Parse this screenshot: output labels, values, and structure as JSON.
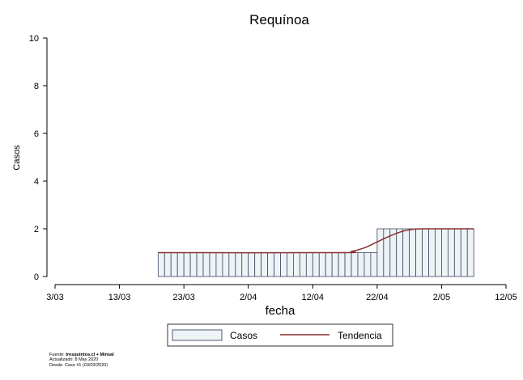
{
  "chart_data": {
    "type": "bar",
    "title": "Requínoa",
    "xlabel": "fecha",
    "ylabel": "Casos",
    "ylim": [
      0,
      10
    ],
    "yticks": [
      0,
      2,
      4,
      6,
      8,
      10
    ],
    "xlim": [
      "2020-03-03",
      "2020-05-12"
    ],
    "xticks": [
      "3/03",
      "13/03",
      "23/03",
      "2/04",
      "12/04",
      "22/04",
      "2/05",
      "12/05"
    ],
    "grid": false,
    "legend_position": "bottom",
    "series": [
      {
        "name": "Casos",
        "style": "bar",
        "color": "#eef3f6",
        "edge_color": "#3d4a62",
        "segments": [
          {
            "from": "2020-03-19",
            "to": "2020-04-22",
            "value": 1
          },
          {
            "from": "2020-04-22",
            "to": "2020-05-07",
            "value": 2
          }
        ]
      },
      {
        "name": "Tendencia",
        "style": "line",
        "color": "#8b2e2e",
        "x": [
          "2020-03-19",
          "2020-04-16",
          "2020-04-18",
          "2020-04-20",
          "2020-04-22",
          "2020-04-24",
          "2020-04-26",
          "2020-04-28",
          "2020-04-30",
          "2020-05-07"
        ],
        "values": [
          1,
          1,
          1.05,
          1.2,
          1.45,
          1.7,
          1.9,
          1.99,
          2,
          2
        ]
      }
    ]
  },
  "legend": {
    "items": [
      {
        "label": "Casos"
      },
      {
        "label": "Tendencia"
      }
    ]
  },
  "footer": {
    "source_prefix": "Fuente: ",
    "source_bold": "tresquintos.cl + Minsal",
    "updated": "Actualizado: 8 May 2020",
    "since": "Desde: Caso #1  (03/03/2020)"
  }
}
